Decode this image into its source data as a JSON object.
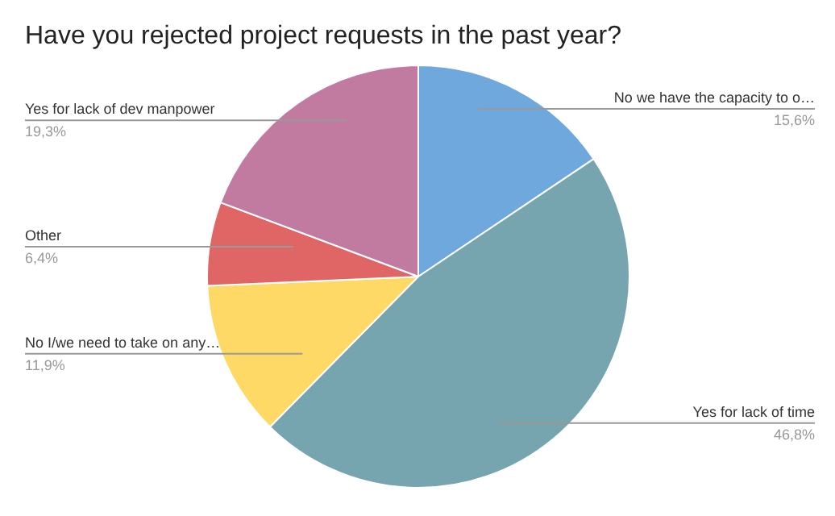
{
  "chart_data": {
    "type": "pie",
    "title": "Have you rejected project requests in the past year?",
    "categories": [
      "No we have the capacity to o…",
      "Yes for lack of time",
      "No I/we need to take on any…",
      "Other",
      "Yes for lack of dev manpower"
    ],
    "values": [
      15.6,
      46.8,
      11.9,
      6.4,
      19.3
    ],
    "value_labels": [
      "15,6%",
      "46,8%",
      "11,9%",
      "6,4%",
      "19,3%"
    ],
    "colors": [
      "#6fa8dc",
      "#76a5af",
      "#ffd966",
      "#e06666",
      "#c27ba0"
    ]
  }
}
